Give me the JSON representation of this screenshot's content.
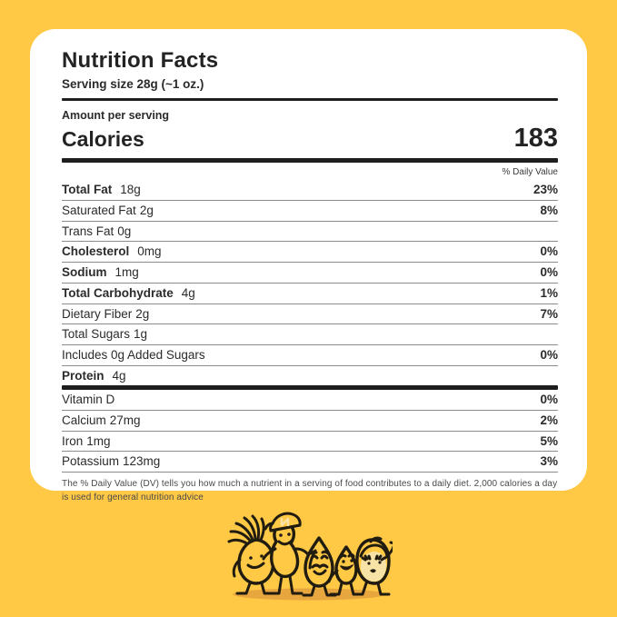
{
  "background_color": "#FFC845",
  "card_color": "#FFFFFF",
  "label": {
    "title": "Nutrition Facts",
    "serving_size": "Serving size 28g (~1 oz.)",
    "amount_per_serving": "Amount per serving",
    "calories_label": "Calories",
    "calories_value": "183",
    "daily_value_header": "% Daily Value",
    "rows": [
      {
        "label": "Total Fat",
        "value": "18g",
        "pct": "23%",
        "bold": true
      },
      {
        "label": "Saturated Fat",
        "value": "2g",
        "pct": "8%",
        "bold": false
      },
      {
        "label": "Trans Fat",
        "value": "0g",
        "pct": "",
        "bold": false
      },
      {
        "label": "Cholesterol",
        "value": "0mg",
        "pct": "0%",
        "bold": true
      },
      {
        "label": "Sodium",
        "value": "1mg",
        "pct": "0%",
        "bold": true
      },
      {
        "label": "Total Carbohydrate",
        "value": "4g",
        "pct": "1%",
        "bold": true
      },
      {
        "label": "Dietary Fiber",
        "value": "2g",
        "pct": "7%",
        "bold": false
      },
      {
        "label": "Total Sugars",
        "value": "1g",
        "pct": "",
        "bold": false
      },
      {
        "label": "Includes 0g Added Sugars",
        "value": "",
        "pct": "0%",
        "bold": false
      },
      {
        "label": "Protein",
        "value": "4g",
        "pct": "",
        "bold": true,
        "thick_after": true
      },
      {
        "label": "Vitamin D",
        "value": "",
        "pct": "0%",
        "bold": false
      },
      {
        "label": "Calcium",
        "value": "27mg",
        "pct": "2%",
        "bold": false
      },
      {
        "label": "Iron",
        "value": "1mg",
        "pct": "5%",
        "bold": false
      },
      {
        "label": "Potassium",
        "value": "123mg",
        "pct": "3%",
        "bold": false
      }
    ],
    "footnote": "The % Daily Value (DV) tells you how much a nutrient in a serving of food contributes to a daily diet. 2,000 calories a day is used for general nutrition advice"
  },
  "illustration": {
    "description": "five cartoon nut and seed mascots walking arm in arm",
    "characters": [
      "spiky-seed",
      "peanut-with-cap",
      "almond-mustache",
      "drop-smiling",
      "hazelnut-girl"
    ],
    "outline_color": "#211c10",
    "body_color": "#FFC845",
    "face_color": "#F8E3A6",
    "shadow_color": "#E8A63E"
  }
}
